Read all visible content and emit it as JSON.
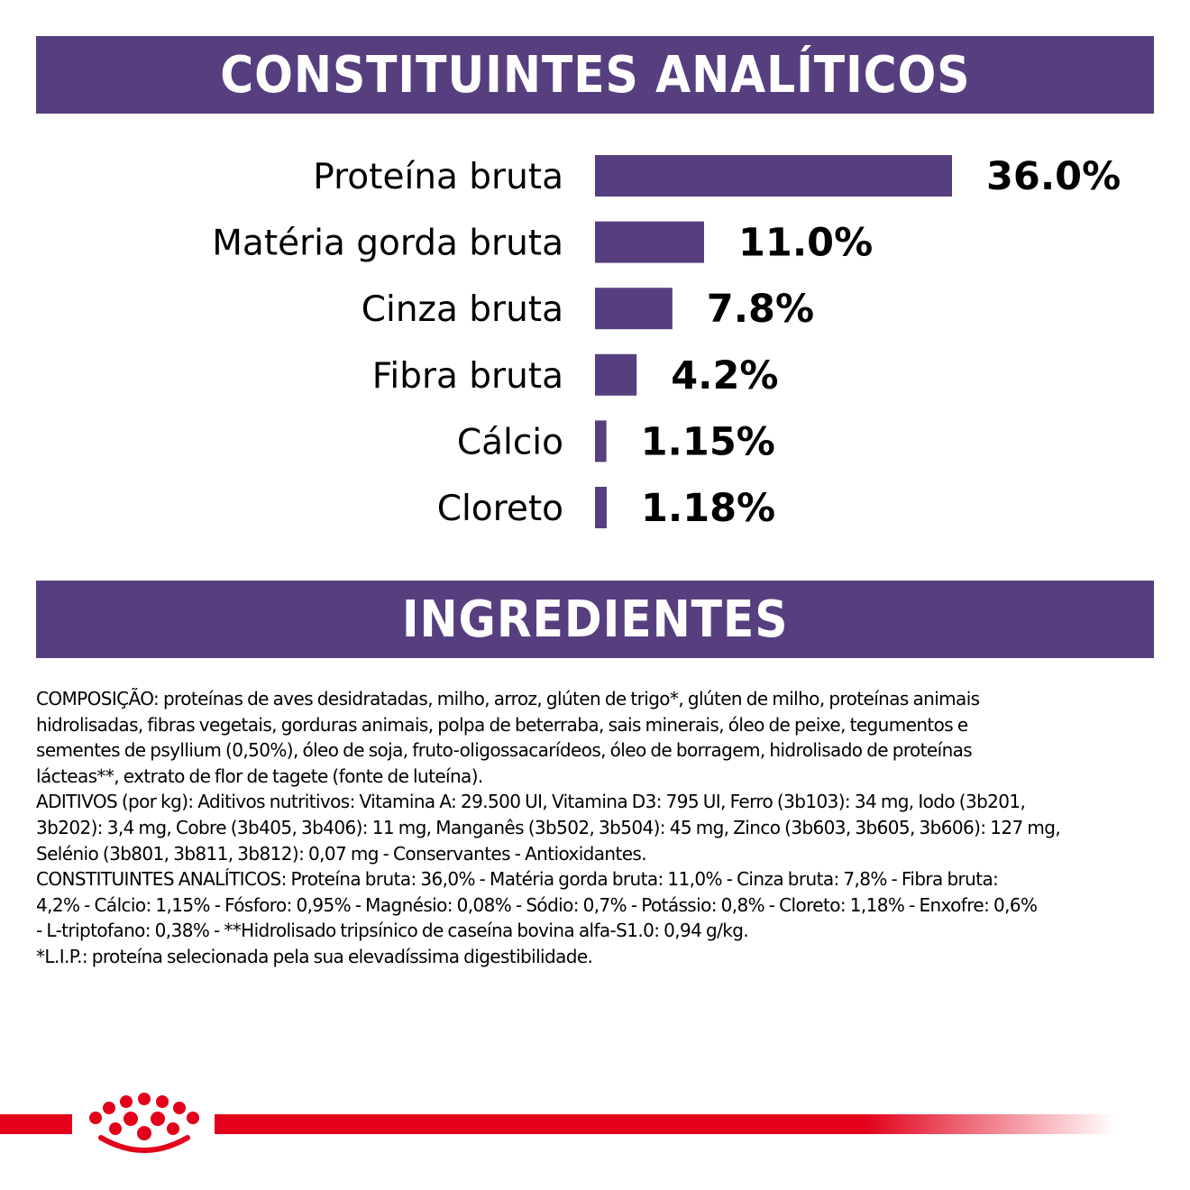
{
  "banners": {
    "analytics_title": "CONSTITUINTES ANALÍTICOS",
    "ingredients_title": "INGREDIENTES"
  },
  "colors": {
    "banner": "#573f7f",
    "bar": "#573f7f",
    "brand_red": "#e2001a"
  },
  "chart_data": {
    "type": "bar",
    "orientation": "horizontal",
    "categories": [
      "Proteína bruta",
      "Matéria gorda bruta",
      "Cinza bruta",
      "Fibra bruta",
      "Cálcio",
      "Cloreto"
    ],
    "values": [
      36.0,
      11.0,
      7.8,
      4.2,
      1.15,
      1.18
    ],
    "value_labels": [
      "36.0%",
      "11.0%",
      "7.8%",
      "4.2%",
      "1.15%",
      "1.18%"
    ],
    "unit": "%",
    "grid": false,
    "legend": "none"
  },
  "ingredients": {
    "paragraphs": [
      "COMPOSIÇÃO: proteínas de aves desidratadas, milho, arroz, glúten de trigo*, glúten de milho, proteínas animais\nhidrolisadas, fibras vegetais, gorduras animais, polpa de beterraba, sais minerais, óleo de peixe, tegumentos e\nsementes de psyllium (0,50%), óleo de soja, fruto-oligossacarídeos, óleo de borragem, hidrolisado de proteínas\nlácteas**, extrato de flor de tagete (fonte de luteína).",
      "ADITIVOS (por kg): Aditivos nutritivos: Vitamina A: 29.500 UI, Vitamina D3: 795 UI, Ferro (3b103): 34 mg, Iodo (3b201,\n3b202): 3,4 mg, Cobre (3b405, 3b406): 11 mg, Manganês (3b502, 3b504): 45 mg, Zinco (3b603, 3b605, 3b606): 127 mg,\nSelénio (3b801, 3b811, 3b812): 0,07 mg - Conservantes - Antioxidantes.",
      "CONSTITUINTES ANALÍTICOS: Proteína bruta: 36,0% - Matéria gorda bruta: 11,0% - Cinza bruta: 7,8% - Fibra bruta:\n4,2% - Cálcio: 1,15% - Fósforo: 0,95% - Magnésio: 0,08% - Sódio: 0,7% - Potássio: 0,8% - Cloreto: 1,18% - Enxofre: 0,6%\n- L-triptofano: 0,38% - **Hidrolisado tripsínico de caseína bovina alfa-S1.0: 0,94 g/kg.",
      "*L.I.P.: proteína selecionada pela sua elevadíssima digestibilidade."
    ]
  },
  "footer": {
    "logo_icon": "crown-icon"
  }
}
